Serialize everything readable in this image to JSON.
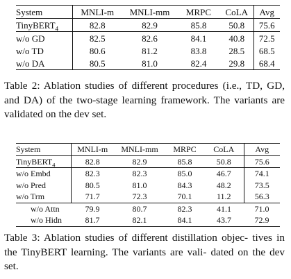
{
  "table2": {
    "headers": [
      "System",
      "MNLI-m",
      "MNLI-mm",
      "MRPC",
      "CoLA",
      "Avg"
    ],
    "rows": [
      {
        "name": "TinyBERT",
        "sub": "4",
        "values": [
          "82.8",
          "82.9",
          "85.8",
          "50.8",
          "75.6"
        ]
      },
      {
        "name": "w/o GD",
        "values": [
          "82.5",
          "82.6",
          "84.1",
          "40.8",
          "72.5"
        ]
      },
      {
        "name": "w/o TD",
        "values": [
          "80.6",
          "81.2",
          "83.8",
          "28.5",
          "68.5"
        ]
      },
      {
        "name": "w/o DA",
        "values": [
          "80.5",
          "81.0",
          "82.4",
          "29.8",
          "68.4"
        ]
      }
    ],
    "caption_lines": [
      "Table 2: Ablation studies of different procedures (i.e.,",
      "TD, GD, and DA) of the two-stage learning framework.",
      "The variants are validated on the dev set."
    ]
  },
  "table3": {
    "headers": [
      "System",
      "MNLI-m",
      "MNLI-mm",
      "MRPC",
      "CoLA",
      "Avg"
    ],
    "rows": [
      {
        "name": "TinyBERT",
        "sub": "4",
        "values": [
          "82.8",
          "82.9",
          "85.8",
          "50.8",
          "75.6"
        ]
      },
      {
        "name": "w/o Embd",
        "values": [
          "82.3",
          "82.3",
          "85.0",
          "46.7",
          "74.1"
        ]
      },
      {
        "name": "w/o Pred",
        "values": [
          "80.5",
          "81.0",
          "84.3",
          "48.2",
          "73.5"
        ]
      },
      {
        "name": "w/o Trm",
        "values": [
          "71.7",
          "72.3",
          "70.1",
          "11.2",
          "56.3"
        ]
      },
      {
        "name": "w/o Attn",
        "values": [
          "79.9",
          "80.7",
          "82.3",
          "41.1",
          "71.0"
        ]
      },
      {
        "name": "w/o Hidn",
        "values": [
          "81.7",
          "82.1",
          "84.1",
          "43.7",
          "72.9"
        ]
      }
    ],
    "caption_lines": [
      "Table 3: Ablation studies of different distillation objec-",
      "tives in the TinyBERT learning. The variants are vali-",
      "dated on the dev set."
    ]
  }
}
